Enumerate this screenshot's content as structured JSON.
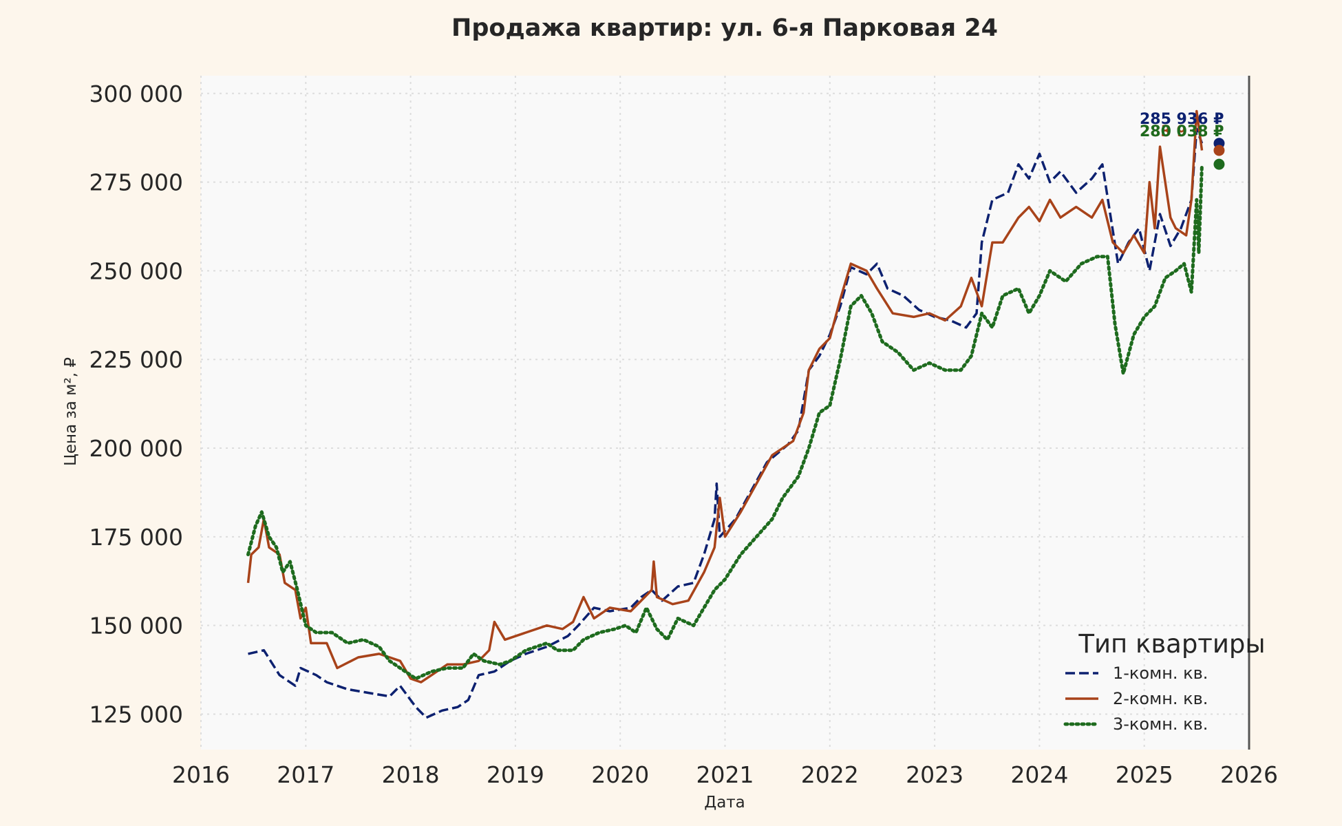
{
  "chart_data": {
    "type": "line",
    "title": "Продажа квартир: ул. 6-я Парковая 24",
    "xlabel": "Дата",
    "ylabel": "Цена за м², ₽",
    "xlim": [
      2016.0,
      2026.0
    ],
    "ylim": [
      115000,
      305000
    ],
    "x_ticks": [
      2016,
      2017,
      2018,
      2019,
      2020,
      2021,
      2022,
      2023,
      2024,
      2025,
      2026
    ],
    "x_tick_labels": [
      "2016",
      "2017",
      "2018",
      "2019",
      "2020",
      "2021",
      "2022",
      "2023",
      "2024",
      "2025",
      "2026"
    ],
    "y_ticks": [
      125000,
      150000,
      175000,
      200000,
      225000,
      250000,
      275000,
      300000
    ],
    "y_tick_labels": [
      "125 000",
      "150 000",
      "175 000",
      "200 000",
      "225 000",
      "250 000",
      "275 000",
      "300 000"
    ],
    "grid": true,
    "legend": {
      "title": "Тип квартиры",
      "position": "lower-right"
    },
    "series": [
      {
        "name": "1-комн. кв.",
        "color": "#0d2170",
        "dash": "dashed",
        "end_label": "285 936 ₽",
        "end_value": 285936,
        "points": [
          [
            2016.45,
            142000
          ],
          [
            2016.6,
            143000
          ],
          [
            2016.75,
            136000
          ],
          [
            2016.9,
            133000
          ],
          [
            2016.95,
            138000
          ],
          [
            2017.1,
            136000
          ],
          [
            2017.2,
            134000
          ],
          [
            2017.4,
            132000
          ],
          [
            2017.6,
            131000
          ],
          [
            2017.8,
            130000
          ],
          [
            2017.9,
            133000
          ],
          [
            2018.05,
            127000
          ],
          [
            2018.15,
            124000
          ],
          [
            2018.3,
            126000
          ],
          [
            2018.45,
            127000
          ],
          [
            2018.55,
            129000
          ],
          [
            2018.65,
            136000
          ],
          [
            2018.8,
            137000
          ],
          [
            2018.95,
            140000
          ],
          [
            2019.1,
            142000
          ],
          [
            2019.3,
            144000
          ],
          [
            2019.5,
            147000
          ],
          [
            2019.6,
            150000
          ],
          [
            2019.75,
            155000
          ],
          [
            2019.9,
            154000
          ],
          [
            2020.1,
            155000
          ],
          [
            2020.2,
            158000
          ],
          [
            2020.3,
            160000
          ],
          [
            2020.4,
            157000
          ],
          [
            2020.55,
            161000
          ],
          [
            2020.7,
            162000
          ],
          [
            2020.8,
            170000
          ],
          [
            2020.9,
            180000
          ],
          [
            2020.92,
            190000
          ],
          [
            2020.95,
            175000
          ],
          [
            2021.1,
            180000
          ],
          [
            2021.25,
            188000
          ],
          [
            2021.4,
            196000
          ],
          [
            2021.6,
            201000
          ],
          [
            2021.7,
            205000
          ],
          [
            2021.8,
            222000
          ],
          [
            2021.9,
            226000
          ],
          [
            2022.0,
            232000
          ],
          [
            2022.1,
            240000
          ],
          [
            2022.2,
            251000
          ],
          [
            2022.35,
            249000
          ],
          [
            2022.45,
            252000
          ],
          [
            2022.55,
            245000
          ],
          [
            2022.7,
            243000
          ],
          [
            2022.85,
            239000
          ],
          [
            2023.0,
            237000
          ],
          [
            2023.15,
            236000
          ],
          [
            2023.3,
            234000
          ],
          [
            2023.4,
            238000
          ],
          [
            2023.45,
            258000
          ],
          [
            2023.55,
            270000
          ],
          [
            2023.7,
            272000
          ],
          [
            2023.8,
            280000
          ],
          [
            2023.9,
            276000
          ],
          [
            2024.0,
            283000
          ],
          [
            2024.1,
            275000
          ],
          [
            2024.2,
            278000
          ],
          [
            2024.35,
            272000
          ],
          [
            2024.5,
            276000
          ],
          [
            2024.6,
            280000
          ],
          [
            2024.75,
            252000
          ],
          [
            2024.85,
            258000
          ],
          [
            2024.95,
            262000
          ],
          [
            2025.05,
            250000
          ],
          [
            2025.15,
            266000
          ],
          [
            2025.25,
            257000
          ],
          [
            2025.35,
            262000
          ],
          [
            2025.45,
            270000
          ],
          [
            2025.5,
            290000
          ],
          [
            2025.55,
            285936
          ]
        ]
      },
      {
        "name": "2-комн. кв.",
        "color": "#a8431a",
        "dash": "solid",
        "end_label": "283 938 ₽",
        "end_value": 283938,
        "points": [
          [
            2016.45,
            162000
          ],
          [
            2016.48,
            170000
          ],
          [
            2016.55,
            172000
          ],
          [
            2016.6,
            180000
          ],
          [
            2016.65,
            172000
          ],
          [
            2016.75,
            170000
          ],
          [
            2016.8,
            162000
          ],
          [
            2016.9,
            160000
          ],
          [
            2016.95,
            152000
          ],
          [
            2017.0,
            155000
          ],
          [
            2017.05,
            145000
          ],
          [
            2017.2,
            145000
          ],
          [
            2017.3,
            138000
          ],
          [
            2017.5,
            141000
          ],
          [
            2017.7,
            142000
          ],
          [
            2017.9,
            140000
          ],
          [
            2018.0,
            135000
          ],
          [
            2018.1,
            134000
          ],
          [
            2018.2,
            136000
          ],
          [
            2018.35,
            139000
          ],
          [
            2018.5,
            139000
          ],
          [
            2018.65,
            140000
          ],
          [
            2018.75,
            143000
          ],
          [
            2018.8,
            151000
          ],
          [
            2018.9,
            146000
          ],
          [
            2019.1,
            148000
          ],
          [
            2019.3,
            150000
          ],
          [
            2019.45,
            149000
          ],
          [
            2019.55,
            151000
          ],
          [
            2019.65,
            158000
          ],
          [
            2019.75,
            152000
          ],
          [
            2019.9,
            155000
          ],
          [
            2020.1,
            154000
          ],
          [
            2020.2,
            157000
          ],
          [
            2020.3,
            160000
          ],
          [
            2020.32,
            168000
          ],
          [
            2020.35,
            158000
          ],
          [
            2020.5,
            156000
          ],
          [
            2020.65,
            157000
          ],
          [
            2020.8,
            165000
          ],
          [
            2020.9,
            172000
          ],
          [
            2020.95,
            186000
          ],
          [
            2021.0,
            175000
          ],
          [
            2021.15,
            182000
          ],
          [
            2021.3,
            190000
          ],
          [
            2021.45,
            198000
          ],
          [
            2021.65,
            202000
          ],
          [
            2021.75,
            210000
          ],
          [
            2021.8,
            222000
          ],
          [
            2021.9,
            228000
          ],
          [
            2022.0,
            231000
          ],
          [
            2022.1,
            242000
          ],
          [
            2022.2,
            252000
          ],
          [
            2022.35,
            250000
          ],
          [
            2022.45,
            245000
          ],
          [
            2022.6,
            238000
          ],
          [
            2022.8,
            237000
          ],
          [
            2022.95,
            238000
          ],
          [
            2023.1,
            236000
          ],
          [
            2023.25,
            240000
          ],
          [
            2023.35,
            248000
          ],
          [
            2023.45,
            240000
          ],
          [
            2023.55,
            258000
          ],
          [
            2023.65,
            258000
          ],
          [
            2023.8,
            265000
          ],
          [
            2023.9,
            268000
          ],
          [
            2024.0,
            264000
          ],
          [
            2024.1,
            270000
          ],
          [
            2024.2,
            265000
          ],
          [
            2024.35,
            268000
          ],
          [
            2024.5,
            265000
          ],
          [
            2024.6,
            270000
          ],
          [
            2024.7,
            258000
          ],
          [
            2024.8,
            255000
          ],
          [
            2024.9,
            260000
          ],
          [
            2025.0,
            255000
          ],
          [
            2025.05,
            275000
          ],
          [
            2025.1,
            262000
          ],
          [
            2025.15,
            285000
          ],
          [
            2025.25,
            265000
          ],
          [
            2025.3,
            262000
          ],
          [
            2025.4,
            260000
          ],
          [
            2025.45,
            270000
          ],
          [
            2025.5,
            295000
          ],
          [
            2025.55,
            283938
          ]
        ]
      },
      {
        "name": "3-комн. кв.",
        "color": "#1e6b1e",
        "dash": "dotted",
        "end_label": "280 038 ₽",
        "end_value": 280038,
        "points": [
          [
            2016.45,
            170000
          ],
          [
            2016.52,
            178000
          ],
          [
            2016.58,
            182000
          ],
          [
            2016.65,
            175000
          ],
          [
            2016.72,
            172000
          ],
          [
            2016.78,
            165000
          ],
          [
            2016.85,
            168000
          ],
          [
            2016.92,
            160000
          ],
          [
            2017.0,
            150000
          ],
          [
            2017.1,
            148000
          ],
          [
            2017.25,
            148000
          ],
          [
            2017.4,
            145000
          ],
          [
            2017.55,
            146000
          ],
          [
            2017.7,
            144000
          ],
          [
            2017.8,
            140000
          ],
          [
            2017.95,
            137000
          ],
          [
            2018.05,
            135000
          ],
          [
            2018.2,
            137000
          ],
          [
            2018.35,
            138000
          ],
          [
            2018.5,
            138000
          ],
          [
            2018.6,
            142000
          ],
          [
            2018.7,
            140000
          ],
          [
            2018.85,
            139000
          ],
          [
            2018.95,
            140000
          ],
          [
            2019.1,
            143000
          ],
          [
            2019.3,
            145000
          ],
          [
            2019.4,
            143000
          ],
          [
            2019.55,
            143000
          ],
          [
            2019.65,
            146000
          ],
          [
            2019.8,
            148000
          ],
          [
            2019.95,
            149000
          ],
          [
            2020.05,
            150000
          ],
          [
            2020.15,
            148000
          ],
          [
            2020.25,
            155000
          ],
          [
            2020.35,
            149000
          ],
          [
            2020.45,
            146000
          ],
          [
            2020.55,
            152000
          ],
          [
            2020.7,
            150000
          ],
          [
            2020.8,
            155000
          ],
          [
            2020.9,
            160000
          ],
          [
            2021.0,
            163000
          ],
          [
            2021.15,
            170000
          ],
          [
            2021.3,
            175000
          ],
          [
            2021.45,
            180000
          ],
          [
            2021.55,
            186000
          ],
          [
            2021.7,
            192000
          ],
          [
            2021.8,
            200000
          ],
          [
            2021.9,
            210000
          ],
          [
            2022.0,
            212000
          ],
          [
            2022.1,
            225000
          ],
          [
            2022.2,
            240000
          ],
          [
            2022.3,
            243000
          ],
          [
            2022.4,
            238000
          ],
          [
            2022.5,
            230000
          ],
          [
            2022.65,
            227000
          ],
          [
            2022.8,
            222000
          ],
          [
            2022.95,
            224000
          ],
          [
            2023.1,
            222000
          ],
          [
            2023.25,
            222000
          ],
          [
            2023.35,
            226000
          ],
          [
            2023.45,
            238000
          ],
          [
            2023.55,
            234000
          ],
          [
            2023.65,
            243000
          ],
          [
            2023.8,
            245000
          ],
          [
            2023.9,
            238000
          ],
          [
            2024.0,
            243000
          ],
          [
            2024.1,
            250000
          ],
          [
            2024.25,
            247000
          ],
          [
            2024.4,
            252000
          ],
          [
            2024.55,
            254000
          ],
          [
            2024.65,
            254000
          ],
          [
            2024.72,
            235000
          ],
          [
            2024.8,
            221000
          ],
          [
            2024.9,
            232000
          ],
          [
            2025.0,
            237000
          ],
          [
            2025.1,
            240000
          ],
          [
            2025.2,
            248000
          ],
          [
            2025.3,
            250000
          ],
          [
            2025.38,
            252000
          ],
          [
            2025.45,
            244000
          ],
          [
            2025.5,
            270000
          ],
          [
            2025.52,
            255000
          ],
          [
            2025.55,
            280038
          ]
        ]
      }
    ]
  }
}
